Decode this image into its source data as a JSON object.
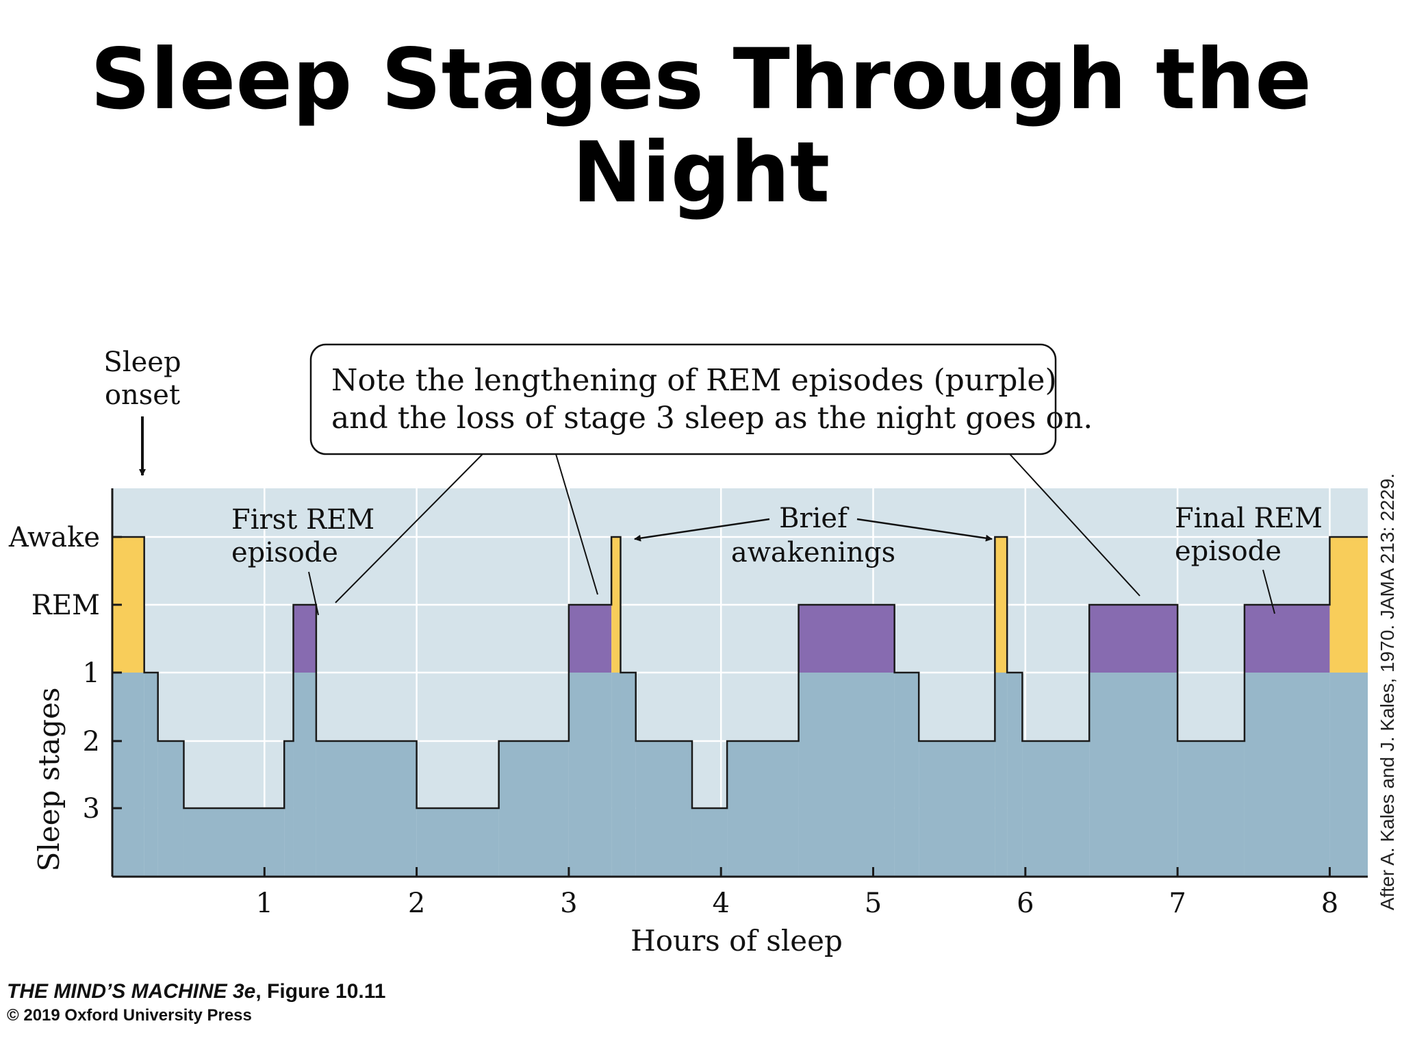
{
  "page": {
    "title_line1": "Sleep Stages Through the",
    "title_line2": "Night"
  },
  "chart_data": {
    "type": "area",
    "xlabel": "Hours of sleep",
    "ylabel": "Sleep stages",
    "xlim": [
      0,
      8.25
    ],
    "x_ticks": [
      1,
      2,
      3,
      4,
      5,
      6,
      7,
      8
    ],
    "stage_levels": [
      "Awake",
      "REM",
      "1",
      "2",
      "3"
    ],
    "hypnogram": [
      {
        "start": 0.0,
        "end": 0.21,
        "stage": "Awake"
      },
      {
        "start": 0.21,
        "end": 0.3,
        "stage": "1"
      },
      {
        "start": 0.3,
        "end": 0.47,
        "stage": "2"
      },
      {
        "start": 0.47,
        "end": 1.13,
        "stage": "3"
      },
      {
        "start": 1.13,
        "end": 1.19,
        "stage": "2"
      },
      {
        "start": 1.19,
        "end": 1.34,
        "stage": "REM"
      },
      {
        "start": 1.34,
        "end": 2.0,
        "stage": "2"
      },
      {
        "start": 2.0,
        "end": 2.54,
        "stage": "3"
      },
      {
        "start": 2.54,
        "end": 3.0,
        "stage": "2"
      },
      {
        "start": 3.0,
        "end": 3.28,
        "stage": "REM"
      },
      {
        "start": 3.28,
        "end": 3.34,
        "stage": "Awake"
      },
      {
        "start": 3.34,
        "end": 3.44,
        "stage": "1"
      },
      {
        "start": 3.44,
        "end": 3.81,
        "stage": "2"
      },
      {
        "start": 3.81,
        "end": 4.04,
        "stage": "3"
      },
      {
        "start": 4.04,
        "end": 4.51,
        "stage": "2"
      },
      {
        "start": 4.51,
        "end": 5.14,
        "stage": "REM"
      },
      {
        "start": 5.14,
        "end": 5.3,
        "stage": "1"
      },
      {
        "start": 5.3,
        "end": 5.8,
        "stage": "2"
      },
      {
        "start": 5.8,
        "end": 5.88,
        "stage": "Awake"
      },
      {
        "start": 5.88,
        "end": 5.98,
        "stage": "1"
      },
      {
        "start": 5.98,
        "end": 6.42,
        "stage": "2"
      },
      {
        "start": 6.42,
        "end": 7.0,
        "stage": "REM"
      },
      {
        "start": 7.0,
        "end": 7.44,
        "stage": "2"
      },
      {
        "start": 7.44,
        "end": 8.0,
        "stage": "REM"
      },
      {
        "start": 8.0,
        "end": 8.25,
        "stage": "Awake"
      }
    ],
    "colors": {
      "plot_background": "#d5e3ea",
      "sleep_depth_fill": "#97b7c9",
      "rem": "#876bb0",
      "awake": "#f8cd5a",
      "outline": "#1a1a1a",
      "grid": "#ffffff"
    },
    "grid": true,
    "annotations": {
      "callout_line1": "Note the lengthening of REM episodes (purple)",
      "callout_line2": "and the loss of stage 3 sleep as the night goes on.",
      "sleep_onset_line1": "Sleep",
      "sleep_onset_line2": "onset",
      "first_rem_line1": "First REM",
      "first_rem_line2": "episode",
      "brief_line1": "Brief",
      "brief_line2": "awakenings",
      "final_rem_line1": "Final REM",
      "final_rem_line2": "episode"
    },
    "credit": "After A. Kales and J. Kales, 1970. JAMA 213: 2229."
  },
  "footer": {
    "book_title": "THE MIND’S MACHINE 3e",
    "figure_label": ", Figure 10.11",
    "copyright": "© 2019 Oxford University Press"
  }
}
